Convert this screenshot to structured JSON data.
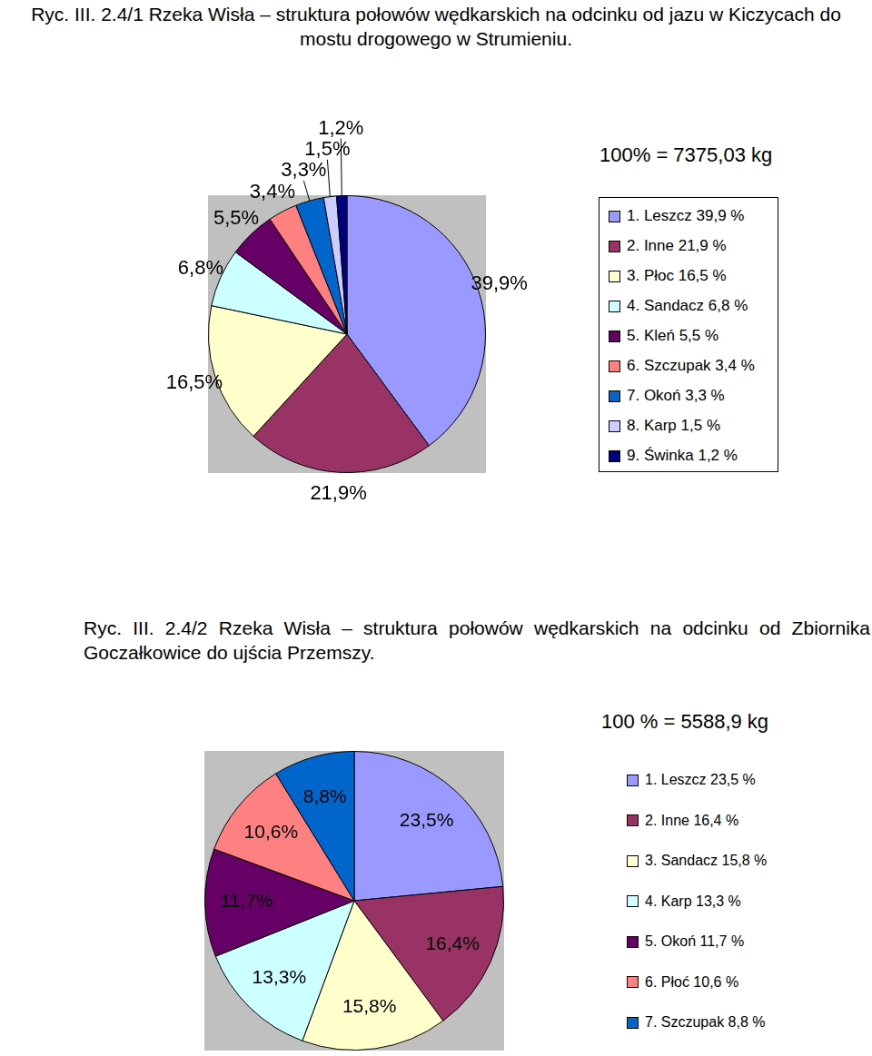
{
  "chart_data": [
    {
      "type": "pie",
      "title": "Ryc. III. 2.4/1 Rzeka Wisła – struktura połowów wędkarskich na odcinku od jazu w Kiczycach do mostu drogowego w Strumieniu.",
      "subtitle": "100% = 7375,03 kg",
      "categories": [
        "1. Leszcz 39,9 %",
        "2. Inne 21,9 %",
        "3. Płoc 16,5 %",
        "4. Sandacz 6,8 %",
        "5. Kleń 5,5 %",
        "6. Szczupak 3,4 %",
        "7. Okoń 3,3 %",
        "8. Karp 1,5 %",
        "9. Świnka 1,2 %"
      ],
      "values": [
        39.9,
        21.9,
        16.5,
        6.8,
        5.5,
        3.4,
        3.3,
        1.5,
        1.2
      ],
      "value_labels": [
        "39,9%",
        "21,9%",
        "16,5%",
        "6,8%",
        "5,5%",
        "3,4%",
        "3,3%",
        "1,5%",
        "1,2%"
      ],
      "colors": [
        "#9999ff",
        "#993366",
        "#ffffcc",
        "#ccffff",
        "#660066",
        "#ff8080",
        "#0066cc",
        "#ccccff",
        "#000080"
      ],
      "data_labels": true,
      "legend": "right"
    },
    {
      "type": "pie",
      "title": "Ryc. III. 2.4/2 Rzeka Wisła – struktura połowów wędkarskich na odcinku od Zbiornika Goczałkowice do ujścia Przemszy.",
      "subtitle": "100 % = 5588,9 kg",
      "categories": [
        "1. Leszcz 23,5 %",
        "2. Inne 16,4 %",
        "3. Sandacz 15,8 %",
        "4. Karp 13,3 %",
        "5. Okoń 11,7 %",
        "6. Płoć 10,6 %",
        "7. Szczupak 8,8 %"
      ],
      "values": [
        23.5,
        16.4,
        15.8,
        13.3,
        11.7,
        10.6,
        8.8
      ],
      "value_labels": [
        "23,5%",
        "16,4%",
        "15,8%",
        "13,3%",
        "11,7%",
        "10,6%",
        "8,8%"
      ],
      "colors": [
        "#9999ff",
        "#993366",
        "#ffffcc",
        "#ccffff",
        "#660066",
        "#ff8080",
        "#0066cc"
      ],
      "data_labels": true,
      "legend": "right"
    }
  ]
}
